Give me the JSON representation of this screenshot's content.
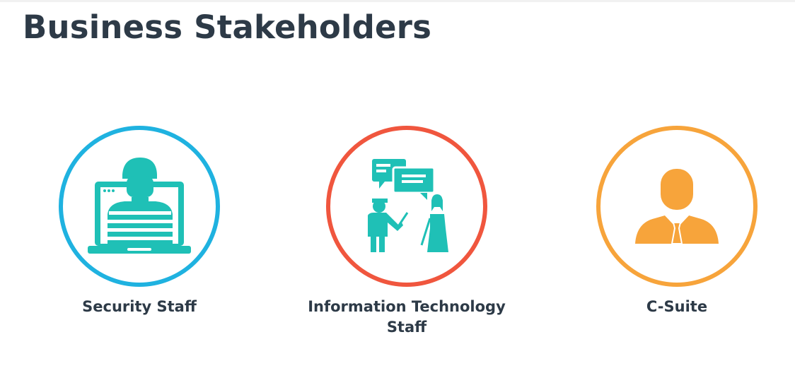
{
  "title": "Business Stakeholders",
  "colors": {
    "title_text": "#2d3a47",
    "icon_fill": "#1fc0b6",
    "security_ring": "#1fb2e0",
    "it_ring": "#f0563e",
    "csuite_ring": "#f7a43b",
    "csuite_icon": "#f7a43b"
  },
  "stakeholders": [
    {
      "label": "Security Staff",
      "icon": "person-on-laptop-icon"
    },
    {
      "label": "Information Technology Staff",
      "icon": "people-discussing-icon"
    },
    {
      "label": "C-Suite",
      "icon": "businessman-icon"
    }
  ]
}
